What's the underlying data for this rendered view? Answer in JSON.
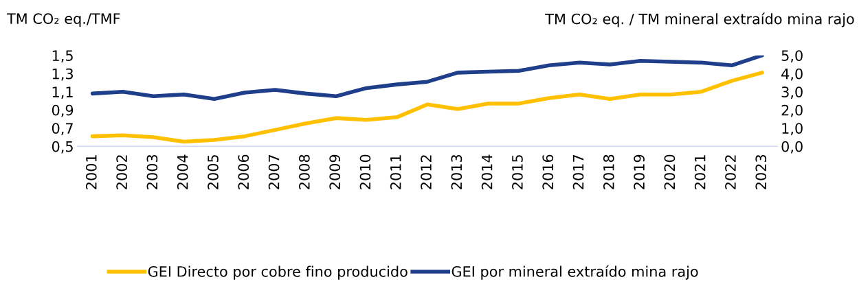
{
  "chart_data": {
    "type": "line",
    "ylabel": "TM CO₂ eq./TMF",
    "y2label": "TM CO₂ eq. / TM mineral extraído mina rajo",
    "categories": [
      "2001",
      "2002",
      "2003",
      "2004",
      "2005",
      "2006",
      "2007",
      "2008",
      "2009",
      "2010",
      "2011",
      "2012",
      "2013",
      "2014",
      "2015",
      "2016",
      "2017",
      "2018",
      "2019",
      "2020",
      "2021",
      "2022",
      "2023"
    ],
    "series": [
      {
        "name": "GEI Directo por cobre fino producido",
        "color": "#ffc000",
        "values": [
          0.61,
          0.62,
          0.6,
          0.55,
          0.57,
          0.61,
          0.68,
          0.75,
          0.81,
          0.79,
          0.82,
          0.96,
          0.91,
          0.97,
          0.97,
          1.03,
          1.07,
          1.02,
          1.07,
          1.07,
          1.1,
          1.22,
          1.31
        ]
      },
      {
        "name": "GEI por mineral extraído mina rajo",
        "color": "#1f3f8a",
        "axis": "y2",
        "values": [
          2.9,
          3.0,
          2.75,
          2.85,
          2.6,
          2.95,
          3.1,
          2.9,
          2.75,
          3.2,
          3.4,
          3.55,
          4.05,
          4.1,
          4.15,
          4.45,
          4.6,
          4.5,
          4.7,
          4.65,
          4.6,
          4.45,
          5.0
        ]
      }
    ],
    "ylim": [
      0.5,
      1.5
    ],
    "yticks": [
      {
        "value": 0.5,
        "label": "0,5"
      },
      {
        "value": 0.7,
        "label": "0,7"
      },
      {
        "value": 0.9,
        "label": "0,9"
      },
      {
        "value": 1.1,
        "label": "1,1"
      },
      {
        "value": 1.3,
        "label": "1,3"
      },
      {
        "value": 1.5,
        "label": "1,5"
      }
    ],
    "y2lim": [
      0,
      5
    ],
    "y2ticks": [
      {
        "value": 0,
        "label": "0,0"
      },
      {
        "value": 1,
        "label": "1,0"
      },
      {
        "value": 2,
        "label": "2,0"
      },
      {
        "value": 3,
        "label": "3,0"
      },
      {
        "value": 4,
        "label": "4,0"
      },
      {
        "value": 5,
        "label": "5,0"
      }
    ],
    "grid": false,
    "legend": "bottom",
    "line_style": "solid",
    "marker": "none"
  }
}
